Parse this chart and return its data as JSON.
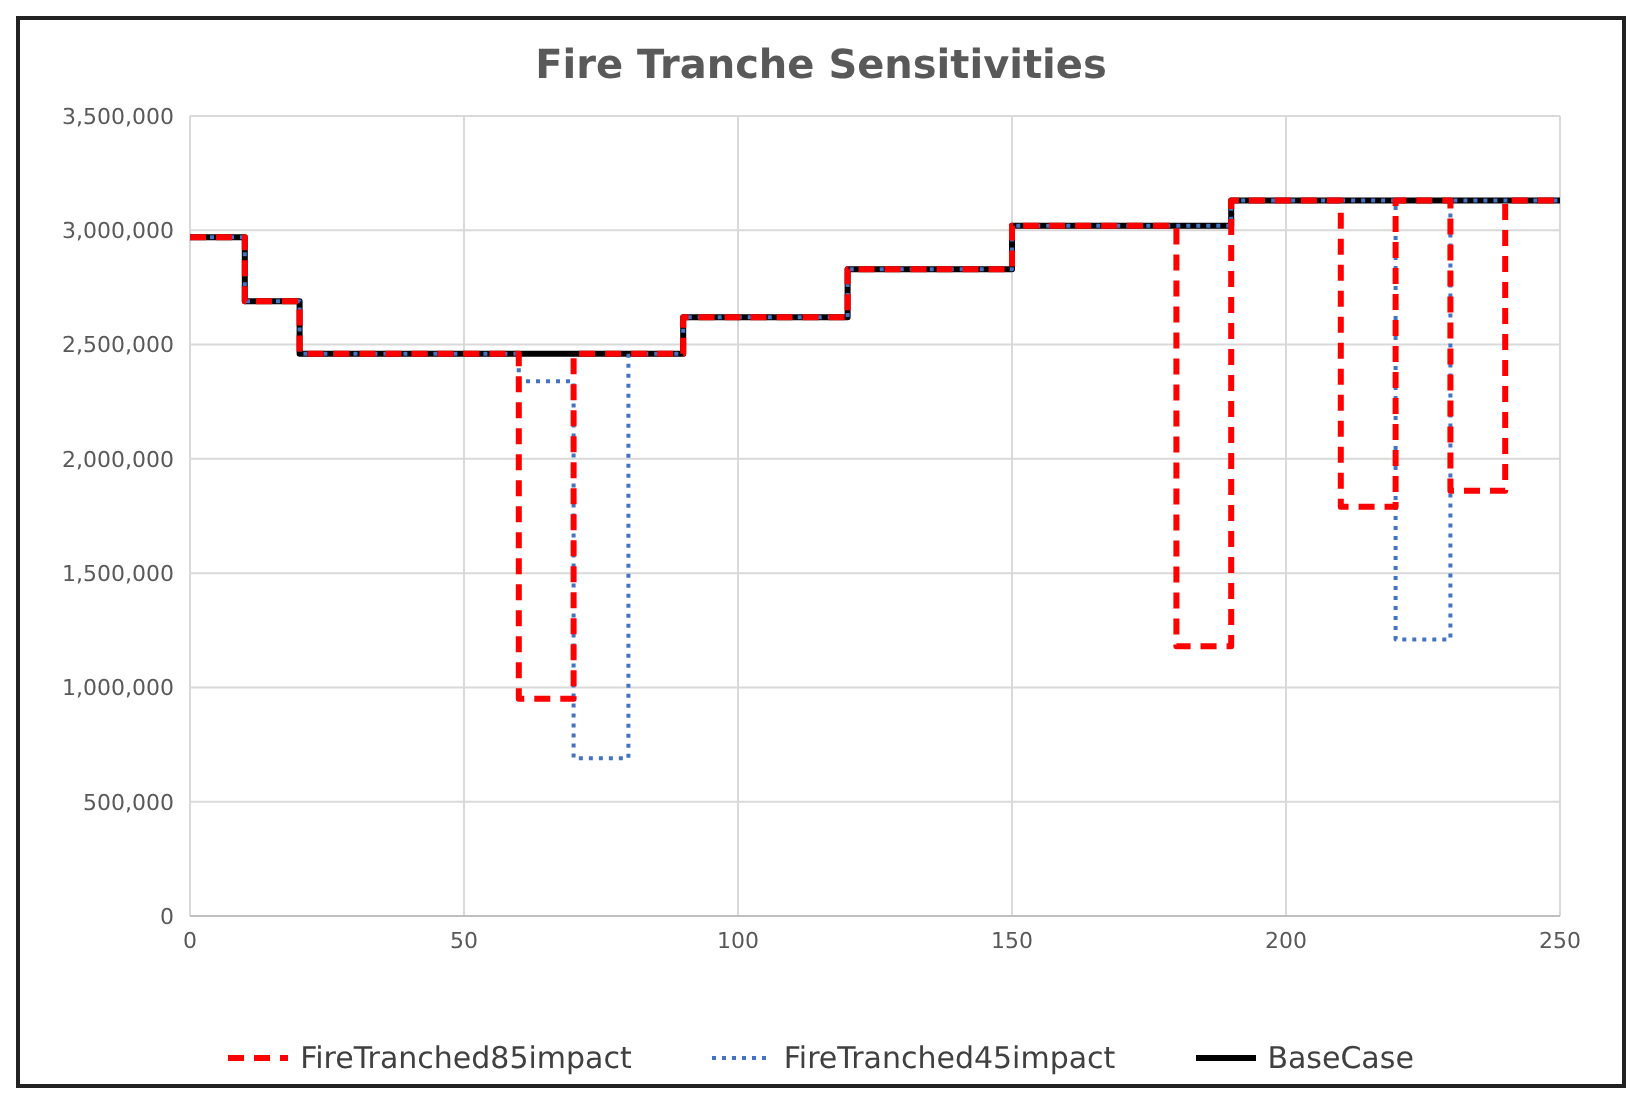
{
  "chart_data": {
    "type": "step",
    "title": "Fire Tranche Sensitivities",
    "x": [
      0,
      10,
      20,
      60,
      70,
      80,
      90,
      120,
      150,
      180,
      190,
      210,
      220,
      230,
      240,
      250
    ],
    "series": [
      {
        "name": "FireTranched85impact",
        "color": "#ff0000",
        "line_style": "dashed",
        "values": [
          2970000,
          2690000,
          2460000,
          950000,
          2460000,
          2460000,
          2620000,
          2830000,
          3020000,
          1180000,
          3130000,
          1790000,
          3130000,
          1860000,
          3130000,
          3130000
        ]
      },
      {
        "name": "FireTranched45impact",
        "color": "#4472c4",
        "line_style": "dotted",
        "values": [
          2970000,
          2690000,
          2460000,
          2340000,
          690000,
          2460000,
          2620000,
          2830000,
          3020000,
          3020000,
          3130000,
          3130000,
          1210000,
          3130000,
          3130000,
          3130000
        ]
      },
      {
        "name": "BaseCase",
        "color": "#000000",
        "line_style": "solid",
        "values": [
          2970000,
          2690000,
          2460000,
          2460000,
          2460000,
          2460000,
          2620000,
          2830000,
          3020000,
          3020000,
          3130000,
          3130000,
          3130000,
          3130000,
          3130000,
          3130000
        ]
      }
    ],
    "xlim": [
      0,
      250
    ],
    "xticks": [
      0,
      50,
      100,
      150,
      200,
      250
    ],
    "ylim": [
      0,
      3500000
    ],
    "yticks": [
      0,
      {
        "value": 500000,
        "label": "500,000"
      },
      {
        "value": 1000000,
        "label": "1,000,000"
      },
      {
        "value": 1500000,
        "label": "1,500,000"
      },
      {
        "value": 2000000,
        "label": "2,000,000"
      },
      {
        "value": 2500000,
        "label": "2,500,000"
      },
      {
        "value": 3000000,
        "label": "3,000,000"
      },
      {
        "value": 3500000,
        "label": "3,500,000"
      }
    ],
    "grid": true,
    "legend": "bottom",
    "marker": "none"
  }
}
